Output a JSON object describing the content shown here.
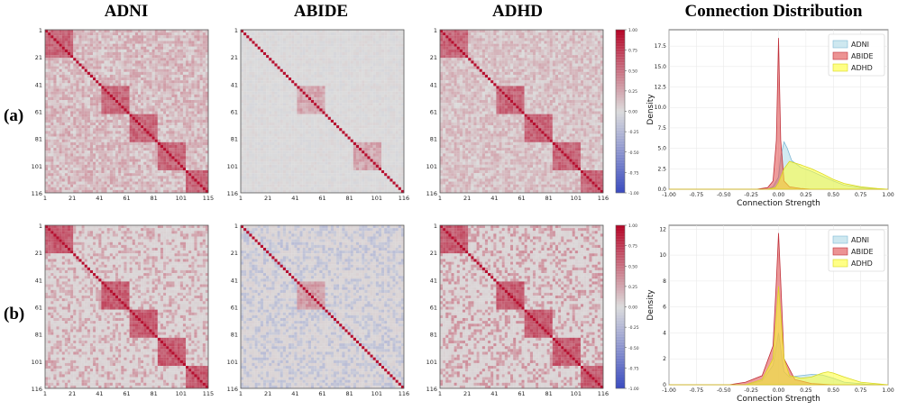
{
  "column_titles": [
    "ADNI",
    "ABIDE",
    "ADHD",
    "Connection Distribution"
  ],
  "row_labels": [
    "(a)",
    "(b)"
  ],
  "colors": {
    "neutral": "#dcdcdc",
    "positive": "#b40426",
    "negative": "#3b4cc0",
    "adni": "#add8e6",
    "abide": "#e04b4b",
    "adhd": "#ffff33"
  },
  "chart_data": [
    {
      "type": "heatmap",
      "row": "a",
      "dataset": "ADNI",
      "x_ticks": [
        "1",
        "21",
        "41",
        "61",
        "81",
        "101",
        "115"
      ],
      "y_ticks": [
        "1",
        "21",
        "41",
        "61",
        "81",
        "101",
        "116"
      ],
      "size": 116,
      "blocks": [
        [
          1,
          20
        ],
        [
          41,
          60
        ],
        [
          61,
          80
        ],
        [
          81,
          100
        ],
        [
          101,
          116
        ]
      ],
      "off_block_level": 0.25,
      "block_level": 0.55,
      "noise": "light"
    },
    {
      "type": "heatmap",
      "row": "a",
      "dataset": "ABIDE",
      "x_ticks": [
        "1",
        "21",
        "41",
        "61",
        "81",
        "101",
        "116"
      ],
      "y_ticks": [
        "1",
        "21",
        "41",
        "61",
        "81",
        "101",
        "116"
      ],
      "size": 116,
      "blocks": [
        [
          41,
          60
        ],
        [
          81,
          100
        ]
      ],
      "off_block_level": 0.0,
      "block_level": 0.25,
      "noise": "very light"
    },
    {
      "type": "heatmap",
      "row": "a",
      "dataset": "ADHD",
      "x_ticks": [
        "1",
        "21",
        "41",
        "61",
        "81",
        "101",
        "116"
      ],
      "y_ticks": [
        "1",
        "21",
        "41",
        "61",
        "81",
        "101",
        "116"
      ],
      "size": 116,
      "blocks": [
        [
          1,
          20
        ],
        [
          41,
          60
        ],
        [
          61,
          80
        ],
        [
          81,
          100
        ],
        [
          101,
          116
        ]
      ],
      "off_block_level": 0.2,
      "block_level": 0.55,
      "noise": "light"
    },
    {
      "type": "heatmap",
      "row": "b",
      "dataset": "ADNI",
      "x_ticks": [
        "1",
        "21",
        "41",
        "61",
        "81",
        "101",
        "115"
      ],
      "y_ticks": [
        "1",
        "21",
        "41",
        "61",
        "81",
        "101",
        "116"
      ],
      "size": 116,
      "blocks": [
        [
          1,
          20
        ],
        [
          41,
          60
        ],
        [
          61,
          80
        ],
        [
          81,
          100
        ],
        [
          101,
          116
        ]
      ],
      "off_block_level": 0.15,
      "block_level": 0.6,
      "noise": "sparse"
    },
    {
      "type": "heatmap",
      "row": "b",
      "dataset": "ABIDE",
      "x_ticks": [
        "1",
        "21",
        "41",
        "61",
        "81",
        "101",
        "116"
      ],
      "y_ticks": [
        "1",
        "21",
        "41",
        "61",
        "81",
        "101",
        "116"
      ],
      "size": 116,
      "blocks": [
        [
          41,
          60
        ]
      ],
      "off_block_level": -0.1,
      "block_level": 0.3,
      "noise": "blue-tinted"
    },
    {
      "type": "heatmap",
      "row": "b",
      "dataset": "ADHD",
      "x_ticks": [
        "1",
        "21",
        "41",
        "61",
        "81",
        "101",
        "116"
      ],
      "y_ticks": [
        "1",
        "21",
        "41",
        "61",
        "81",
        "101",
        "116"
      ],
      "size": 116,
      "blocks": [
        [
          1,
          20
        ],
        [
          41,
          60
        ],
        [
          61,
          80
        ],
        [
          81,
          100
        ],
        [
          101,
          116
        ]
      ],
      "off_block_level": 0.2,
      "block_level": 0.6,
      "noise": "sparse"
    },
    {
      "type": "colorbar",
      "row": "a",
      "range": [
        -1.0,
        1.0
      ],
      "ticks": [
        "1.00",
        "0.75",
        "0.50",
        "0.25",
        "0.00",
        "-0.25",
        "-0.50",
        "-0.75",
        "-1.00"
      ]
    },
    {
      "type": "colorbar",
      "row": "b",
      "range": [
        -1.0,
        1.0
      ],
      "ticks": [
        "1.00",
        "0.75",
        "0.50",
        "0.25",
        "0.00",
        "-0.25",
        "-0.50",
        "-0.75",
        "-1.00"
      ]
    },
    {
      "type": "area",
      "row": "a",
      "xlabel": "Connection Strength",
      "ylabel": "Density",
      "xlim": [
        -1.0,
        1.0
      ],
      "ylim": [
        0,
        19.5
      ],
      "x_ticks": [
        "-1.00",
        "-0.75",
        "-0.50",
        "-0.25",
        "0.00",
        "0.25",
        "0.50",
        "0.75",
        "1.00"
      ],
      "y_ticks": [
        "0.0",
        "2.5",
        "5.0",
        "7.5",
        "10.0",
        "12.5",
        "15.0",
        "17.5"
      ],
      "legend": [
        "ADNI",
        "ABIDE",
        "ADHD"
      ],
      "legend_position": "top-right",
      "series": [
        {
          "name": "ADNI",
          "x": [
            -1.0,
            -0.1,
            -0.05,
            0.0,
            0.02,
            0.05,
            0.08,
            0.12,
            0.2,
            0.3,
            0.4,
            0.5,
            0.6,
            0.75,
            0.9,
            1.0
          ],
          "y": [
            0.0,
            0.0,
            0.3,
            1.5,
            4.0,
            5.8,
            5.0,
            3.5,
            2.7,
            2.2,
            1.6,
            1.0,
            0.5,
            0.2,
            0.05,
            0.0
          ]
        },
        {
          "name": "ABIDE",
          "x": [
            -1.0,
            -0.2,
            -0.1,
            -0.05,
            -0.02,
            0.0,
            0.02,
            0.05,
            0.1,
            0.2,
            0.3,
            1.0
          ],
          "y": [
            0.0,
            0.0,
            0.2,
            1.0,
            6.0,
            18.5,
            6.0,
            1.0,
            0.3,
            0.1,
            0.0,
            0.0
          ]
        },
        {
          "name": "ADHD",
          "x": [
            -1.0,
            -0.1,
            -0.03,
            0.0,
            0.05,
            0.1,
            0.2,
            0.3,
            0.4,
            0.5,
            0.6,
            0.75,
            0.9,
            1.0
          ],
          "y": [
            0.0,
            0.0,
            0.2,
            0.8,
            2.5,
            3.4,
            3.0,
            2.5,
            1.9,
            1.2,
            0.7,
            0.3,
            0.1,
            0.0
          ]
        }
      ]
    },
    {
      "type": "area",
      "row": "b",
      "xlabel": "Connection Strength",
      "ylabel": "Density",
      "xlim": [
        -1.0,
        1.0
      ],
      "ylim": [
        0,
        12.3
      ],
      "x_ticks": [
        "-1.00",
        "-0.75",
        "-0.50",
        "-0.25",
        "0.00",
        "0.25",
        "0.50",
        "0.75",
        "1.00"
      ],
      "y_ticks": [
        "0",
        "2",
        "4",
        "6",
        "8",
        "10",
        "12"
      ],
      "legend": [
        "ADNI",
        "ABIDE",
        "ADHD"
      ],
      "legend_position": "top-right",
      "series": [
        {
          "name": "ADNI",
          "x": [
            -1.0,
            -0.3,
            -0.15,
            -0.05,
            0.0,
            0.05,
            0.1,
            0.2,
            0.3,
            0.4,
            0.5,
            0.6,
            0.8,
            1.0
          ],
          "y": [
            0.0,
            0.0,
            0.3,
            1.5,
            4.0,
            1.0,
            0.6,
            0.7,
            0.8,
            0.75,
            0.5,
            0.2,
            0.05,
            0.0
          ]
        },
        {
          "name": "ABIDE",
          "x": [
            -1.0,
            -0.45,
            -0.3,
            -0.15,
            -0.05,
            -0.02,
            0.0,
            0.02,
            0.05,
            0.15,
            0.3,
            0.5,
            1.0
          ],
          "y": [
            0.0,
            0.0,
            0.2,
            0.7,
            3.0,
            8.0,
            11.7,
            8.0,
            2.0,
            0.4,
            0.1,
            0.0,
            0.0
          ]
        },
        {
          "name": "ADHD",
          "x": [
            -1.0,
            -0.3,
            -0.15,
            -0.05,
            0.0,
            0.05,
            0.1,
            0.2,
            0.3,
            0.4,
            0.45,
            0.5,
            0.6,
            0.75,
            1.0
          ],
          "y": [
            0.0,
            0.0,
            0.4,
            2.0,
            7.6,
            2.0,
            0.7,
            0.5,
            0.6,
            0.9,
            1.0,
            0.9,
            0.6,
            0.2,
            0.0
          ]
        }
      ]
    }
  ]
}
